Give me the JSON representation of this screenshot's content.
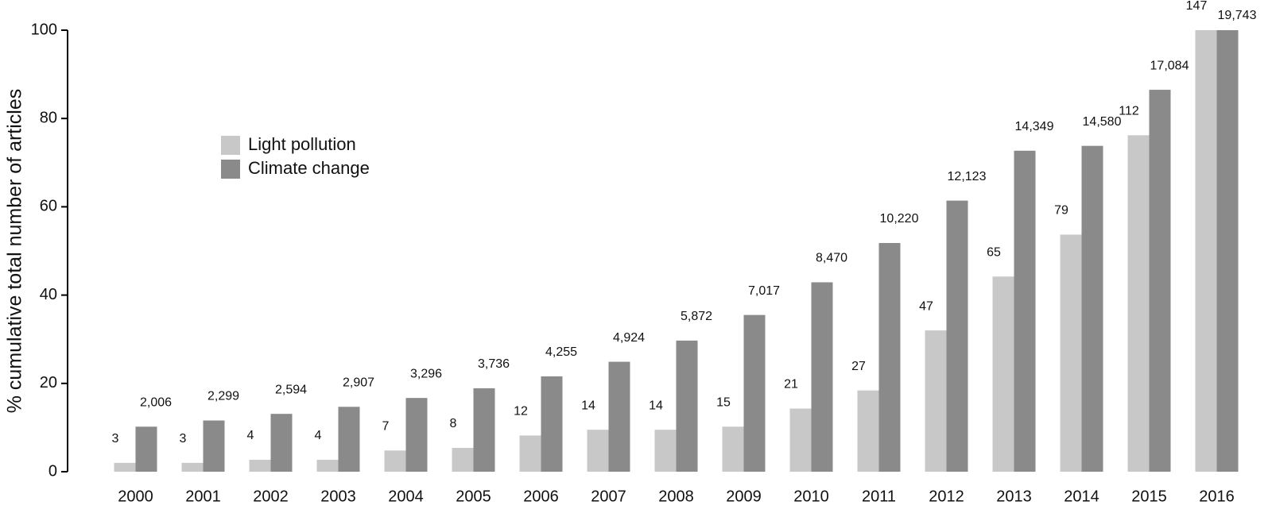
{
  "chart_data": {
    "type": "bar",
    "y_label": "% cumulative total number of articles",
    "categories": [
      "2000",
      "2001",
      "2002",
      "2003",
      "2004",
      "2005",
      "2006",
      "2007",
      "2008",
      "2009",
      "2010",
      "2011",
      "2012",
      "2013",
      "2014",
      "2015",
      "2016"
    ],
    "series": [
      {
        "name": "Light pollution",
        "color": "#c8c8c8",
        "values": [
          2.0,
          2.0,
          2.7,
          2.7,
          4.8,
          5.4,
          8.2,
          9.5,
          9.5,
          10.2,
          14.3,
          18.4,
          32.0,
          44.2,
          53.7,
          76.2,
          100
        ],
        "value_labels": [
          "3",
          "3",
          "4",
          "4",
          "7",
          "8",
          "12",
          "14",
          "14",
          "15",
          "21",
          "27",
          "47",
          "65",
          "79",
          "112",
          "147"
        ]
      },
      {
        "name": "Climate change",
        "color": "#8a8a8a",
        "values": [
          10.2,
          11.6,
          13.1,
          14.7,
          16.7,
          18.9,
          21.6,
          24.9,
          29.7,
          35.5,
          42.9,
          51.8,
          61.4,
          72.7,
          73.8,
          86.5,
          100
        ],
        "value_labels": [
          "2,006",
          "2,299",
          "2,594",
          "2,907",
          "3,296",
          "3,736",
          "4,255",
          "4,924",
          "5,872",
          "7,017",
          "8,470",
          "10,220",
          "12,123",
          "14,349",
          "14,580",
          "17,084",
          "19,743"
        ]
      }
    ],
    "ylim": [
      0,
      100
    ],
    "yticks": [
      0,
      20,
      40,
      60,
      80,
      100
    ],
    "grid": false
  }
}
